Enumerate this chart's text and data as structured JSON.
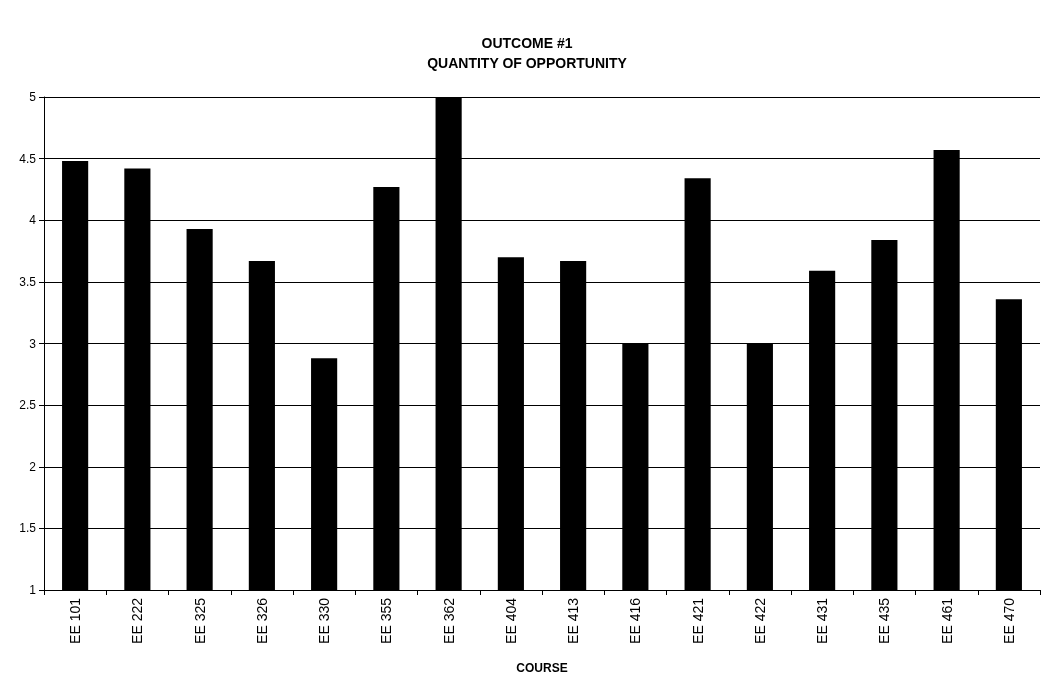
{
  "chart_data": {
    "type": "bar",
    "title": "OUTCOME #1\nQUANTITY OF OPPORTUNITY",
    "xlabel": "COURSE",
    "categories": [
      "EE 101",
      "EE 222",
      "EE 325",
      "EE 326",
      "EE 330",
      "EE 355",
      "EE 362",
      "EE 404",
      "EE 413",
      "EE 416",
      "EE 421",
      "EE 422",
      "EE 431",
      "EE 435",
      "EE 461",
      "EE 470"
    ],
    "values": [
      4.48,
      4.42,
      3.93,
      3.67,
      2.88,
      4.27,
      5,
      3.7,
      3.67,
      3,
      4.34,
      3,
      3.59,
      3.84,
      4.57,
      3.36
    ],
    "color": "#000000",
    "ylim": [
      1,
      5
    ],
    "yticks": [
      1,
      1.5,
      2,
      2.5,
      3,
      3.5,
      4,
      4.5,
      5
    ],
    "grid": "y"
  }
}
